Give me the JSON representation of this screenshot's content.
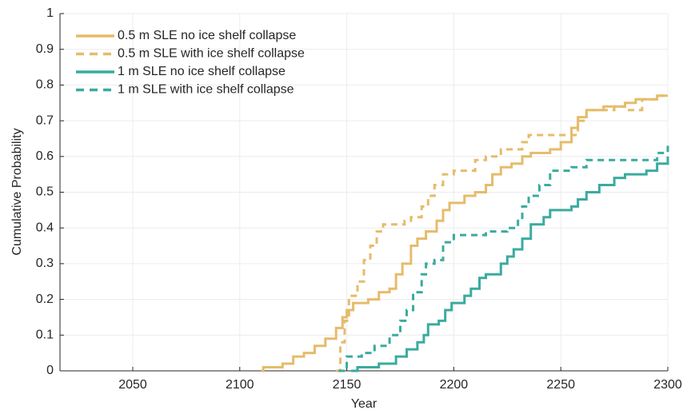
{
  "chart_data": {
    "type": "line",
    "drawstyle": "steps",
    "xlabel": "Year",
    "ylabel": "Cumulative Probability",
    "xlim": [
      2016,
      2300
    ],
    "ylim": [
      0,
      1
    ],
    "xticks": [
      2050,
      2100,
      2150,
      2200,
      2250,
      2300
    ],
    "yticks": [
      0,
      0.1,
      0.2,
      0.3,
      0.4,
      0.5,
      0.6,
      0.7,
      0.8,
      0.9,
      1
    ],
    "grid": true,
    "legend": "upper left",
    "series": [
      {
        "name": "0.5 m SLE no ice shelf collapse",
        "color": "#e5bc6b",
        "linestyle": "solid",
        "x": [
          2110,
          2111,
          2120,
          2125,
          2130,
          2135,
          2140,
          2145,
          2148,
          2150,
          2153,
          2160,
          2165,
          2170,
          2173,
          2176,
          2180,
          2183,
          2187,
          2192,
          2195,
          2198,
          2205,
          2210,
          2215,
          2218,
          2222,
          2227,
          2232,
          2236,
          2245,
          2250,
          2255,
          2258,
          2262,
          2270,
          2280,
          2285,
          2295,
          2300
        ],
        "values": [
          0,
          0.01,
          0.02,
          0.04,
          0.05,
          0.07,
          0.09,
          0.12,
          0.15,
          0.17,
          0.19,
          0.2,
          0.22,
          0.23,
          0.27,
          0.3,
          0.35,
          0.37,
          0.39,
          0.42,
          0.45,
          0.47,
          0.49,
          0.5,
          0.52,
          0.55,
          0.57,
          0.58,
          0.6,
          0.61,
          0.62,
          0.64,
          0.68,
          0.71,
          0.73,
          0.74,
          0.75,
          0.76,
          0.77,
          0.77
        ]
      },
      {
        "name": "0.5 m SLE with ice shelf collapse",
        "color": "#e5bc6b",
        "linestyle": "dashed",
        "x": [
          2145,
          2147,
          2149,
          2151,
          2155,
          2158,
          2161,
          2164,
          2167,
          2177,
          2180,
          2185,
          2188,
          2191,
          2195,
          2200,
          2210,
          2215,
          2222,
          2232,
          2235,
          2258,
          2262,
          2275,
          2280,
          2288,
          2295,
          2300
        ],
        "values": [
          0,
          0.08,
          0.14,
          0.21,
          0.25,
          0.31,
          0.35,
          0.39,
          0.41,
          0.42,
          0.43,
          0.46,
          0.49,
          0.52,
          0.55,
          0.56,
          0.59,
          0.6,
          0.62,
          0.64,
          0.66,
          0.7,
          0.73,
          0.74,
          0.73,
          0.76,
          0.77,
          0.77
        ]
      },
      {
        "name": "1 m SLE no ice shelf collapse",
        "color": "#3aab9f",
        "linestyle": "solid",
        "x": [
          2152,
          2155,
          2165,
          2173,
          2178,
          2183,
          2186,
          2188,
          2193,
          2196,
          2199,
          2205,
          2208,
          2212,
          2215,
          2222,
          2225,
          2228,
          2232,
          2236,
          2242,
          2245,
          2255,
          2258,
          2262,
          2268,
          2275,
          2280,
          2290,
          2295,
          2300
        ],
        "values": [
          0,
          0.01,
          0.02,
          0.04,
          0.06,
          0.08,
          0.1,
          0.13,
          0.14,
          0.17,
          0.19,
          0.21,
          0.23,
          0.26,
          0.27,
          0.3,
          0.32,
          0.34,
          0.37,
          0.41,
          0.43,
          0.45,
          0.46,
          0.48,
          0.5,
          0.52,
          0.54,
          0.55,
          0.56,
          0.58,
          0.6
        ]
      },
      {
        "name": "1 m SLE with ice shelf collapse",
        "color": "#3aab9f",
        "linestyle": "dashed",
        "x": [
          2146,
          2150,
          2157,
          2163,
          2170,
          2175,
          2178,
          2181,
          2185,
          2187,
          2191,
          2195,
          2200,
          2215,
          2225,
          2230,
          2232,
          2235,
          2240,
          2245,
          2255,
          2262,
          2295,
          2300
        ],
        "values": [
          0,
          0.04,
          0.05,
          0.07,
          0.1,
          0.14,
          0.17,
          0.22,
          0.27,
          0.3,
          0.31,
          0.36,
          0.38,
          0.39,
          0.4,
          0.42,
          0.46,
          0.49,
          0.52,
          0.56,
          0.57,
          0.59,
          0.61,
          0.63
        ]
      }
    ]
  }
}
